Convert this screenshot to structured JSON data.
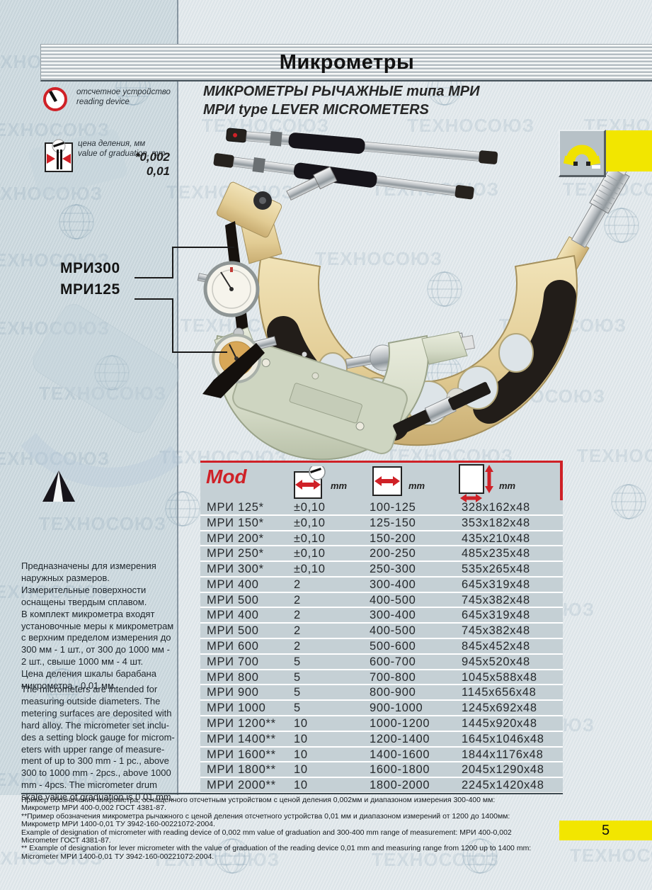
{
  "header": {
    "title": "Микрометры"
  },
  "product": {
    "title_ru": "МИКРОМЕТРЫ РЫЧАЖНЫЕ типа МРИ",
    "title_en": "МРИ type LEVER MICROMETERS"
  },
  "legend": {
    "reading_device_ru": "отсчетное устройство",
    "reading_device_en": "reading device",
    "graduation_ru": "цена деления, мм",
    "graduation_en": "value of graduation, mm",
    "graduation_value_1": "*0,002",
    "graduation_value_2": "0,01"
  },
  "callouts": {
    "model_top": "МРИ300",
    "model_bottom": "МРИ125"
  },
  "description_ru": "Предназначены для измерения\nнаружных размеров.\nИзмерительные поверхности\nоснащены твердым сплавом.\nВ комплект микрометра входят\nустановочные меры к микрометрам\nс верхним пределом измерения до\n300 мм - 1 шт., от 300 до 1000 мм -\n2 шт., свыше 1000 мм - 4 шт.\nЦена деления шкалы барабана\nмикрометра - 0,01 мм.",
  "description_en": "The micrometers are intended for\nmeasuring outside diameters. The\nmetering surfaces are deposited with\nhard alloy. The micrometer set inclu-\ndes a setting block gauge for microm-\neters with upper range of measure-\nment of up to 300 mm - 1 pc., above\n300 to 1000 mm - 2pcs., above  1000\nmm - 4pcs. The micrometer drum\nskale value of graduation is 0.01 mm.",
  "table": {
    "mod_label": "Mod",
    "col_unit_1": "mm",
    "col_unit_2": "mm",
    "col_unit_3": "mm",
    "rows": [
      {
        "model": "МРИ 125*",
        "graduation": "±0,10",
        "range": "100-125",
        "dims": "328х162х48"
      },
      {
        "model": "МРИ 150*",
        "graduation": "±0,10",
        "range": "125-150",
        "dims": "353х182х48"
      },
      {
        "model": "МРИ 200*",
        "graduation": "±0,10",
        "range": "150-200",
        "dims": "435х210х48"
      },
      {
        "model": "МРИ 250*",
        "graduation": "±0,10",
        "range": "200-250",
        "dims": "485х235х48"
      },
      {
        "model": "МРИ 300*",
        "graduation": "±0,10",
        "range": "250-300",
        "dims": "535х265х48"
      },
      {
        "model": "МРИ 400",
        "graduation": "2",
        "range": "300-400",
        "dims": "645х319х48"
      },
      {
        "model": "МРИ 500",
        "graduation": "2",
        "range": "400-500",
        "dims": "745х382х48"
      },
      {
        "model": "МРИ 400",
        "graduation": "2",
        "range": "300-400",
        "dims": "645х319х48"
      },
      {
        "model": "МРИ 500",
        "graduation": "2",
        "range": "400-500",
        "dims": "745х382х48"
      },
      {
        "model": "МРИ 600",
        "graduation": "2",
        "range": "500-600",
        "dims": "845х452х48"
      },
      {
        "model": "МРИ 700",
        "graduation": "5",
        "range": "600-700",
        "dims": "945х520х48"
      },
      {
        "model": "МРИ 800",
        "graduation": "5",
        "range": "700-800",
        "dims": "1045х588х48"
      },
      {
        "model": "МРИ 900",
        "graduation": "5",
        "range": "800-900",
        "dims": "1145х656х48"
      },
      {
        "model": "МРИ 1000",
        "graduation": "5",
        "range": "900-1000",
        "dims": "1245х692х48"
      },
      {
        "model": "МРИ 1200**",
        "graduation": "10",
        "range": "1000-1200",
        "dims": "1445х920х48"
      },
      {
        "model": "МРИ 1400**",
        "graduation": "10",
        "range": "1200-1400",
        "dims": "1645х1046х48"
      },
      {
        "model": "МРИ 1600**",
        "graduation": "10",
        "range": "1400-1600",
        "dims": "1844х1176х48"
      },
      {
        "model": "МРИ 1800**",
        "graduation": "10",
        "range": "1600-1800",
        "dims": "2045х1290х48"
      },
      {
        "model": "МРИ 2000**",
        "graduation": "10",
        "range": "1800-2000",
        "dims": "2245х1420х48"
      }
    ]
  },
  "footnotes": [
    "Пример обозначения микрометра, оснащенного отсчетным устройством с ценой деления 0,002мм и диапазоном измерения 300-400 мм:",
    "Микрометр МРИ 400-0,002 ГОСТ 4381-87.",
    "**Пример обозначения микрометра рычажного с ценой деления отсчетного устройства 0,01 мм и диапазоном измерений от 1200 до 1400мм:",
    "Микрометр МРИ 1400-0,01 ТУ 3942-160-00221072-2004.",
    "Example of designation of micrometer with reading device of 0,002 mm value of graduation and 300-400 mm range of measurement: МРИ 400-0,002",
    "Micrometer ГОСТ 4381-87.",
    "** Example of designation for lever micrometer with the value of graduation of the reading device 0,01 mm and measuring range from 1200 up to 1400 mm:",
    "Micrometer МРИ 1400-0,01 ТУ 3942-160-00221072-2004."
  ],
  "page_number": "5",
  "watermark_text": "ТЕХНОСОЮЗ",
  "colors": {
    "accent-red": "#cf2127",
    "highlight-yellow": "#f2e600",
    "table-bg": "#c5d0d5",
    "sidebar-bg": "#cbd8de",
    "page-bg": "#e2e9ec"
  }
}
